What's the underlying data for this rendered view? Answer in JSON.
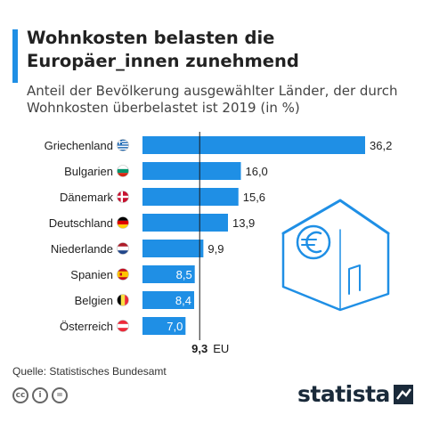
{
  "header": {
    "title": "Wohnkosten belasten die Europäer_innen zunehmend",
    "subtitle": "Anteil der Bevölkerung ausgewählter Länder, der durch Wohnkosten überbelastet ist 2019 (in %)"
  },
  "chart_data": {
    "type": "bar",
    "orientation": "horizontal",
    "categories": [
      "Griechenland",
      "Bulgarien",
      "Dänemark",
      "Deutschland",
      "Niederlande",
      "Spanien",
      "Belgien",
      "Österreich"
    ],
    "values": [
      36.2,
      16.0,
      15.6,
      13.9,
      9.9,
      8.5,
      8.4,
      7.0
    ],
    "value_labels": [
      "36,2",
      "16,0",
      "15,6",
      "13,9",
      "9,9",
      "8,5",
      "8,4",
      "7,0"
    ],
    "flags": [
      "greece",
      "bulgaria",
      "denmark",
      "germany",
      "netherlands",
      "spain",
      "belgium",
      "austria"
    ],
    "reference_line": {
      "value": 9.3,
      "value_label": "9,3",
      "label": "EU"
    },
    "bar_color": "#1f8fe5",
    "xlim": [
      0,
      36.2
    ]
  },
  "footer": {
    "source": "Quelle: Statistisches Bundesamt",
    "license_icons": [
      "cc-icon",
      "by-icon",
      "nd-icon"
    ],
    "license_glyphs": [
      "cc",
      "i",
      "="
    ],
    "brand": "statista"
  },
  "colors": {
    "accent": "#1f8fe5",
    "illustration": "#1f8fe5"
  }
}
